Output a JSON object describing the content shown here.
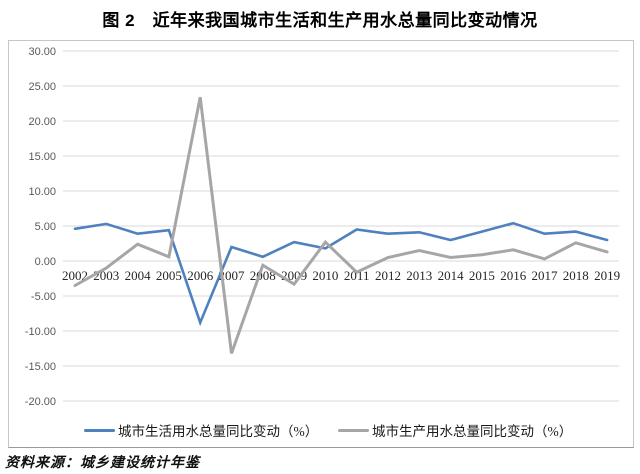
{
  "title": "图 2　近年来我国城市生活和生产用水总量同比变动情况",
  "footer": "资料来源：城乡建设统计年鉴",
  "colors": {
    "domestic_line": "#4E81BD",
    "production_line": "#A6A6A6",
    "gridline": "#D9D9D9",
    "axis_text": "#595959"
  },
  "chart_data": {
    "type": "line",
    "x": [
      "2002",
      "2003",
      "2004",
      "2005",
      "2006",
      "2007",
      "2008",
      "2009",
      "2010",
      "2011",
      "2012",
      "2013",
      "2014",
      "2015",
      "2016",
      "2017",
      "2018",
      "2019"
    ],
    "series": [
      {
        "name": "城市生活用水总量同比变动（%）",
        "color": "#4E81BD",
        "values": [
          4.6,
          5.3,
          3.9,
          4.4,
          -8.8,
          2.0,
          0.6,
          2.7,
          1.8,
          4.5,
          3.9,
          4.1,
          3.0,
          4.2,
          5.4,
          3.9,
          4.2,
          3.0
        ]
      },
      {
        "name": "城市生产用水总量同比变动（%）",
        "color": "#A6A6A6",
        "values": [
          -3.5,
          -1.0,
          2.4,
          0.6,
          23.4,
          -13.2,
          -0.6,
          -3.3,
          2.7,
          -1.6,
          0.5,
          1.5,
          0.5,
          0.9,
          1.6,
          0.3,
          2.6,
          1.3
        ]
      }
    ],
    "title": "图 2　近年来我国城市生活和生产用水总量同比变动情况",
    "xlabel": "",
    "ylabel": "",
    "ylim": [
      -20,
      30
    ],
    "ytick_step": 5,
    "ytick_labels": [
      "30.00",
      "25.00",
      "20.00",
      "15.00",
      "10.00",
      "5.00",
      "0.00",
      "-5.00",
      "-10.00",
      "-15.00",
      "-20.00"
    ],
    "grid": "horizontal",
    "legend_position": "bottom"
  }
}
